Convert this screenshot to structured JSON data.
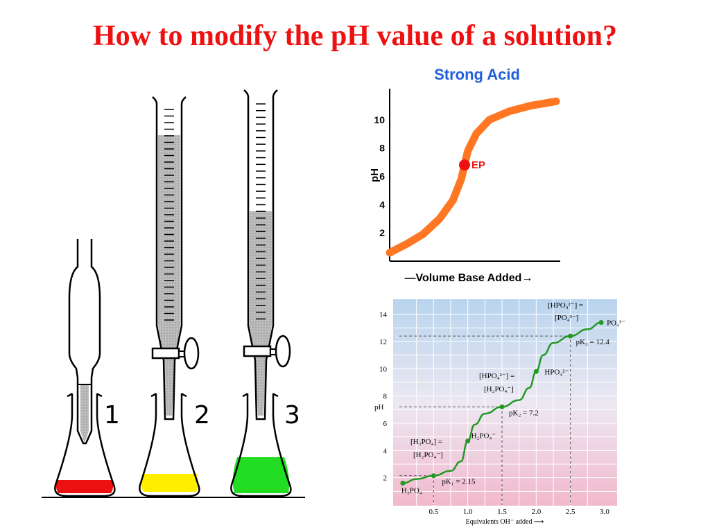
{
  "slide": {
    "title": "How to modify the pH value of a solution?"
  },
  "apparatus": {
    "labels": [
      "1",
      "2",
      "3"
    ],
    "colors": {
      "flask1": "#ee1111",
      "flask2": "#ffee00",
      "flask3": "#22dd22",
      "liquid": "#b0b0b0"
    }
  },
  "chart_data": [
    {
      "type": "line",
      "title": "Strong Acid",
      "xlabel": "—Volume Base Added→",
      "ylabel": "pH",
      "yticks": [
        2,
        4,
        6,
        8,
        10
      ],
      "ylim": [
        0,
        12
      ],
      "xlim": [
        0,
        1
      ],
      "series": [
        {
          "color": "#ff7722",
          "x": [
            0.0,
            0.1,
            0.2,
            0.3,
            0.38,
            0.43,
            0.45,
            0.47,
            0.52,
            0.6,
            0.72,
            0.85,
            1.0
          ],
          "y": [
            0.6,
            1.2,
            1.9,
            3.0,
            4.3,
            5.8,
            6.8,
            7.8,
            9.0,
            10.0,
            10.6,
            11.0,
            11.3
          ]
        }
      ],
      "annotations": [
        {
          "label": "EP",
          "x": 0.45,
          "y": 6.8,
          "color": "#ee1111"
        }
      ],
      "colors": {
        "title": "#1f5fd8",
        "axis": "#000000"
      }
    },
    {
      "type": "line",
      "xlabel": "Equivalents OH⁻ added ⟶",
      "ylabel": "pH",
      "xticks": [
        "0.5",
        "1.0",
        "1.5",
        "2.0",
        "2.5",
        "3.0"
      ],
      "yticks": [
        "2",
        "4",
        "6",
        "8",
        "10",
        "12",
        "14"
      ],
      "xlim": [
        0,
        3.0
      ],
      "ylim": [
        0,
        15
      ],
      "grid": true,
      "series": [
        {
          "color": "#229922",
          "x": [
            0.05,
            0.25,
            0.5,
            0.75,
            0.9,
            1.0,
            1.1,
            1.25,
            1.5,
            1.75,
            1.9,
            2.0,
            2.1,
            2.25,
            2.5,
            2.75,
            2.95
          ],
          "y": [
            1.6,
            1.9,
            2.15,
            2.5,
            3.2,
            4.7,
            5.9,
            6.7,
            7.2,
            7.7,
            8.6,
            9.8,
            11.0,
            11.9,
            12.4,
            12.9,
            13.4
          ]
        }
      ],
      "points": [
        {
          "x": 0.05,
          "y": 1.6,
          "label": "H₃PO₄"
        },
        {
          "x": 0.5,
          "y": 2.15,
          "label": "pK₁ = 2.15"
        },
        {
          "x": 1.0,
          "y": 4.7,
          "label": "H₂PO₄⁻"
        },
        {
          "x": 1.5,
          "y": 7.2,
          "label": "pK₂ = 7.2"
        },
        {
          "x": 2.0,
          "y": 9.8,
          "label": "HPO₄²⁻"
        },
        {
          "x": 2.5,
          "y": 12.4,
          "label": "pK₃ = 12.4"
        },
        {
          "x": 2.95,
          "y": 13.4,
          "label": "PO₄³⁻"
        }
      ],
      "annotations": [
        {
          "line1": "[H₃PO₄] =",
          "line2": "[H₂PO₄⁻]"
        },
        {
          "line1": "[HPO₄²⁻] =",
          "line2": "[H₂PO₄⁻]"
        },
        {
          "line1": "[HPO₄²⁻] =",
          "line2": "[PO₄³⁻]"
        }
      ],
      "colors": {
        "top": "#b8d4ee",
        "bottom": "#f2b8cc",
        "curve": "#229922"
      }
    }
  ]
}
